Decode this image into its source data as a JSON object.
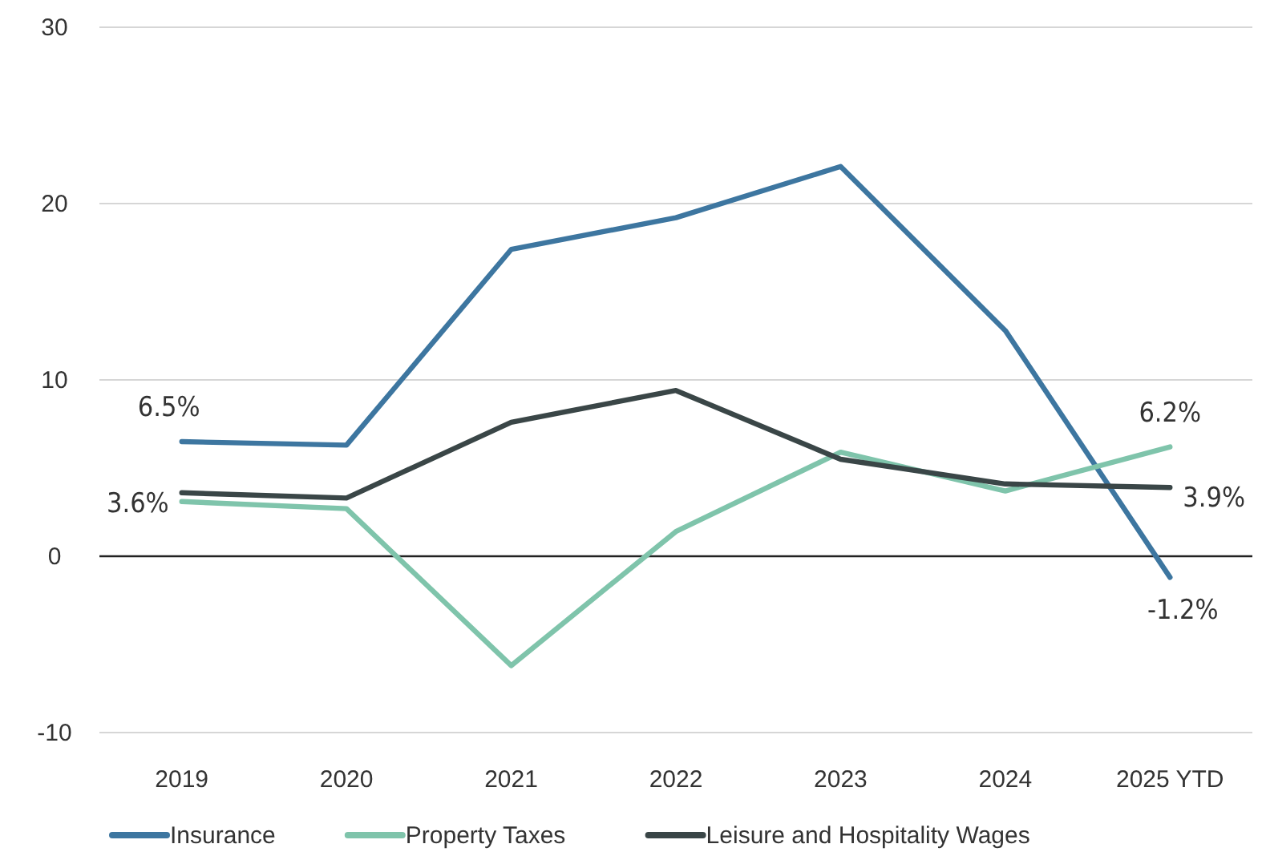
{
  "chart_data": {
    "type": "line",
    "categories": [
      "2019",
      "2020",
      "2021",
      "2022",
      "2023",
      "2024",
      "2025 YTD"
    ],
    "series": [
      {
        "name": "Insurance",
        "color": "#3d76a0",
        "values": [
          6.5,
          6.3,
          17.4,
          19.2,
          22.1,
          12.8,
          -1.2
        ],
        "value_labels": [
          "6.5%",
          null,
          null,
          null,
          null,
          null,
          "-1.2%"
        ]
      },
      {
        "name": "Property Taxes",
        "color": "#7fc4ab",
        "values": [
          3.1,
          2.7,
          -6.2,
          1.4,
          5.9,
          3.7,
          6.2
        ],
        "value_labels": [
          null,
          null,
          null,
          null,
          null,
          null,
          "6.2%"
        ]
      },
      {
        "name": "Leisure and Hospitality Wages",
        "color": "#3a4647",
        "values": [
          3.6,
          3.3,
          7.6,
          9.4,
          5.5,
          4.1,
          3.9
        ],
        "value_labels": [
          "3.6%",
          null,
          null,
          null,
          null,
          null,
          "3.9%"
        ]
      }
    ],
    "ylim": [
      -10,
      30
    ],
    "yticks": [
      -10,
      0,
      10,
      20,
      30
    ],
    "grid": "y",
    "legend": "bottom",
    "marker": "none",
    "line_style": "solid"
  }
}
